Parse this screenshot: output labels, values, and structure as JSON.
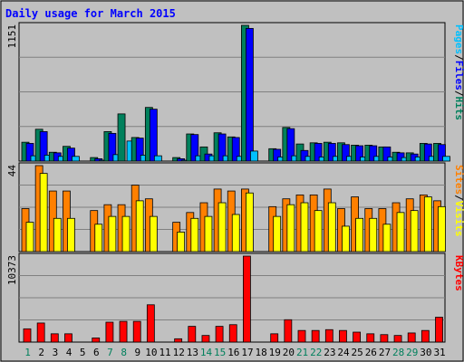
{
  "chart_data": {
    "type": "bar",
    "title": "Daily usage for March 2015",
    "categories": [
      "1",
      "2",
      "3",
      "4",
      "5",
      "6",
      "7",
      "8",
      "9",
      "10",
      "11",
      "12",
      "13",
      "14",
      "15",
      "16",
      "17",
      "18",
      "19",
      "20",
      "21",
      "22",
      "23",
      "24",
      "25",
      "26",
      "27",
      "28",
      "29",
      "30",
      "31"
    ],
    "weekend_days": [
      "1",
      "7",
      "8",
      "14",
      "15",
      "21",
      "22",
      "28",
      "29"
    ],
    "panels": [
      {
        "id": "hits",
        "max_label": "1151",
        "ylim": [
          0,
          1151
        ],
        "grid": true,
        "series": [
          {
            "name": "Hits",
            "color": "#00805c",
            "values": [
              160,
              270,
              75,
              125,
              0,
              30,
              250,
              400,
              200,
              455,
              0,
              30,
              230,
              120,
              240,
              205,
              1151,
              0,
              105,
              285,
              145,
              155,
              160,
              155,
              135,
              135,
              120,
              75,
              70,
              150,
              150
            ]
          },
          {
            "name": "Files",
            "color": "#0000ff",
            "values": [
              150,
              250,
              70,
              110,
              0,
              20,
              235,
              0,
              195,
              440,
              0,
              20,
              225,
              60,
              230,
              200,
              1125,
              0,
              100,
              275,
              90,
              150,
              150,
              140,
              130,
              130,
              120,
              70,
              60,
              145,
              140
            ]
          },
          {
            "name": "Pages",
            "color": "#00c0ff",
            "values": [
              45,
              50,
              40,
              40,
              0,
              5,
              55,
              170,
              50,
              45,
              0,
              5,
              45,
              45,
              45,
              40,
              85,
              0,
              35,
              45,
              40,
              35,
              40,
              40,
              35,
              40,
              35,
              30,
              35,
              40,
              40
            ]
          }
        ],
        "legend": [
          "Pages",
          "/",
          "Files",
          "/",
          "Hits"
        ]
      },
      {
        "id": "visits",
        "max_label": "44",
        "ylim": [
          0,
          44
        ],
        "grid": true,
        "series": [
          {
            "name": "Sites",
            "color": "#ff8000",
            "values": [
              22,
              44,
              31,
              31,
              0,
              21,
              24,
              24,
              34,
              27,
              0,
              15,
              20,
              25,
              32,
              31,
              32,
              0,
              23,
              27,
              29,
              29,
              32,
              22,
              28,
              22,
              22,
              25,
              27,
              29,
              26
            ]
          },
          {
            "name": "Visits",
            "color": "#ffff00",
            "values": [
              15,
              40,
              17,
              17,
              0,
              14,
              18,
              18,
              26,
              18,
              0,
              10,
              17,
              18,
              25,
              19,
              30,
              0,
              18,
              24,
              25,
              21,
              25,
              13,
              17,
              17,
              14,
              20,
              21,
              28,
              23
            ]
          }
        ],
        "legend": [
          "Sites",
          "/",
          "Visits"
        ]
      },
      {
        "id": "kbytes",
        "max_label": "10373",
        "ylim": [
          0,
          10373
        ],
        "grid": true,
        "series": [
          {
            "name": "KBytes",
            "color": "#ff0000",
            "values": [
              1600,
              2300,
              1000,
              1000,
              0,
              500,
              2400,
              2500,
              2500,
              4500,
              0,
              400,
              1900,
              800,
              1900,
              2100,
              10373,
              0,
              1000,
              2700,
              1400,
              1400,
              1500,
              1400,
              1200,
              1000,
              900,
              800,
              1100,
              1400,
              3000
            ]
          }
        ],
        "legend": [
          "KBytes"
        ]
      }
    ]
  }
}
